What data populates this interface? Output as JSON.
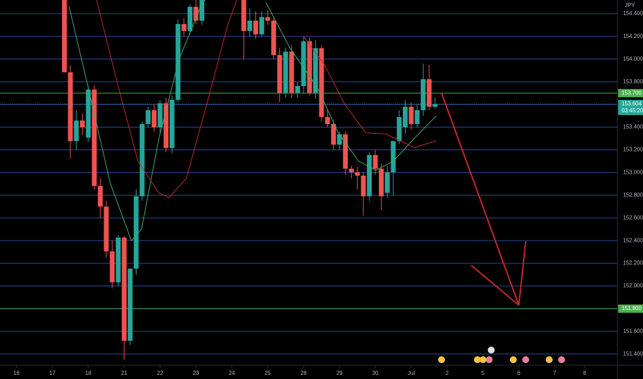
{
  "chart_data": {
    "type": "candlestick",
    "currency": "JPY",
    "colors": {
      "up": "#26a69a",
      "down": "#ef5350",
      "grid": "#2b4c9c",
      "level": "#4caf50",
      "fast_ma": "#3fae6a",
      "slow_ma": "#c62828"
    },
    "grid": true,
    "xlim": [
      -2.77,
      100.5
    ],
    "ylim": [
      151.35,
      154.521
    ],
    "yticks": [
      {
        "value": 151.4,
        "label": "151.400"
      },
      {
        "value": 151.6,
        "label": "151.600"
      },
      {
        "value": 151.8,
        "label": "151.800"
      },
      {
        "value": 152.0,
        "label": "152.000"
      },
      {
        "value": 152.2,
        "label": "152.200"
      },
      {
        "value": 152.4,
        "label": "152.400"
      },
      {
        "value": 152.6,
        "label": "152.600"
      },
      {
        "value": 152.8,
        "label": "152.800"
      },
      {
        "value": 153.0,
        "label": "153.000"
      },
      {
        "value": 153.2,
        "label": "153.200"
      },
      {
        "value": 153.4,
        "label": "153.400"
      },
      {
        "value": 153.6,
        "label": "153.600"
      },
      {
        "value": 153.8,
        "label": "153.800"
      },
      {
        "value": 154.0,
        "label": "154.000"
      },
      {
        "value": 154.2,
        "label": "154.200"
      },
      {
        "value": 154.4,
        "label": "154.400"
      }
    ],
    "xticks": [
      {
        "value": 0,
        "label": "16"
      },
      {
        "value": 6,
        "label": "17"
      },
      {
        "value": 12,
        "label": "18"
      },
      {
        "value": 18,
        "label": "21"
      },
      {
        "value": 24,
        "label": "22"
      },
      {
        "value": 30,
        "label": "23"
      },
      {
        "value": 36,
        "label": "24"
      },
      {
        "value": 42,
        "label": "25"
      },
      {
        "value": 48,
        "label": "28"
      },
      {
        "value": 54,
        "label": "29"
      },
      {
        "value": 60,
        "label": "30"
      },
      {
        "value": 66,
        "label": "Jul"
      },
      {
        "value": 72,
        "label": "2"
      },
      {
        "value": 78,
        "label": "5"
      },
      {
        "value": 84,
        "label": "6"
      },
      {
        "value": 90,
        "label": "7"
      },
      {
        "value": 95,
        "label": "8"
      }
    ],
    "levels": [
      {
        "value": 153.7,
        "label": "153.700"
      },
      {
        "value": 151.8,
        "label": "151.800"
      }
    ],
    "last_price": {
      "value": 153.604,
      "label": "153.604"
    },
    "countdown": "03:45:20",
    "candles": {
      "x": [
        8,
        9,
        10,
        11,
        12,
        13,
        14,
        15,
        16,
        17,
        18,
        19,
        20,
        21,
        22,
        23,
        24,
        25,
        26,
        27,
        28,
        29,
        30,
        31,
        38,
        39,
        40,
        41,
        42,
        43,
        44,
        45,
        46,
        47,
        48,
        49,
        50,
        51,
        52,
        53,
        54,
        55,
        56,
        57,
        58,
        59,
        60,
        61,
        62,
        63,
        64,
        65,
        66,
        67,
        68,
        69,
        70
      ],
      "open": [
        154.55,
        153.884,
        153.277,
        153.459,
        153.307,
        153.732,
        152.882,
        152.7,
        152.305,
        152.032,
        152.427,
        151.516,
        152.153,
        152.791,
        153.428,
        153.55,
        153.398,
        153.611,
        153.216,
        153.641,
        154.309,
        154.248,
        154.461,
        154.339,
        154.55,
        154.248,
        154.339,
        154.218,
        154.37,
        154.339,
        154.036,
        153.702,
        154.066,
        153.702,
        153.762,
        154.157,
        153.702,
        154.096,
        153.489,
        153.428,
        153.246,
        153.337,
        153.034,
        153.003,
        152.973,
        152.791,
        153.155,
        153.034,
        152.821,
        153.003,
        153.277,
        153.398,
        153.58,
        153.428,
        153.55,
        153.823,
        153.58
      ],
      "high": [
        154.6,
        153.945,
        153.55,
        153.52,
        153.76,
        153.77,
        152.95,
        152.75,
        152.4,
        152.45,
        152.44,
        152.15,
        152.85,
        153.45,
        153.58,
        153.6,
        153.64,
        153.66,
        153.68,
        154.35,
        154.36,
        154.48,
        154.52,
        154.55,
        154.6,
        154.45,
        154.42,
        154.42,
        154.43,
        154.36,
        154.1,
        154.1,
        154.12,
        153.8,
        154.2,
        154.19,
        154.17,
        154.12,
        153.55,
        153.46,
        153.36,
        153.36,
        153.06,
        153.05,
        153.0,
        153.18,
        153.2,
        153.08,
        153.06,
        153.28,
        153.55,
        153.64,
        153.62,
        153.6,
        153.96,
        153.95,
        153.66
      ],
      "low": [
        153.884,
        153.125,
        153.2,
        153.33,
        153.27,
        152.85,
        152.6,
        152.25,
        151.98,
        152.0,
        151.35,
        151.48,
        152.1,
        152.75,
        153.4,
        153.36,
        153.35,
        153.18,
        153.17,
        153.62,
        154.2,
        154.22,
        154.31,
        154.3,
        154.0,
        154.2,
        154.18,
        154.2,
        154.3,
        154.0,
        153.62,
        153.66,
        153.66,
        153.66,
        153.7,
        153.68,
        153.65,
        153.45,
        153.4,
        153.2,
        153.2,
        152.98,
        152.95,
        152.85,
        152.62,
        152.75,
        152.98,
        152.67,
        152.78,
        152.8,
        153.25,
        153.34,
        153.38,
        153.4,
        153.5,
        153.55,
        153.56
      ],
      "close": [
        153.884,
        153.277,
        153.459,
        153.398,
        153.732,
        152.882,
        152.7,
        152.305,
        152.032,
        152.427,
        151.516,
        152.153,
        152.791,
        153.428,
        153.55,
        153.398,
        153.611,
        153.216,
        153.641,
        154.309,
        154.248,
        154.461,
        154.339,
        154.55,
        154.248,
        154.339,
        154.218,
        154.37,
        154.339,
        154.036,
        153.702,
        154.066,
        153.702,
        153.762,
        154.157,
        153.702,
        154.096,
        153.489,
        153.428,
        153.246,
        153.337,
        153.034,
        153.003,
        152.973,
        152.791,
        153.155,
        153.034,
        152.791,
        153.003,
        153.277,
        153.489,
        153.58,
        153.428,
        153.55,
        153.823,
        153.58,
        153.604
      ]
    },
    "moving_averages": [
      {
        "key": "fast_ma",
        "x": [
          8.8,
          12.2,
          15.7,
          19.2,
          20.9,
          23.8,
          27.2,
          30.7,
          31.8,
          null,
          41.7,
          45.7,
          50.3,
          53.8,
          57.2,
          60.1,
          63,
          66.5,
          70.2
        ],
        "values": [
          154.46,
          153.7,
          152.9,
          152.4,
          152.5,
          153.3,
          154.0,
          154.45,
          154.55,
          null,
          154.5,
          154.1,
          153.75,
          153.35,
          153.1,
          153.02,
          153.1,
          153.3,
          153.5
        ]
      },
      {
        "key": "slow_ma",
        "x": [
          13.4,
          16.8,
          20.3,
          23.8,
          25.5,
          28.4,
          31.8,
          35.3,
          37,
          null,
          48,
          51.5,
          54.9,
          58.4,
          61.8,
          66.5,
          70.2
        ],
        "values": [
          154.521,
          153.8,
          153.1,
          152.82,
          152.78,
          152.95,
          153.6,
          154.3,
          154.55,
          null,
          154.2,
          153.95,
          153.6,
          153.35,
          153.34,
          153.22,
          153.28
        ]
      }
    ]
  }
}
